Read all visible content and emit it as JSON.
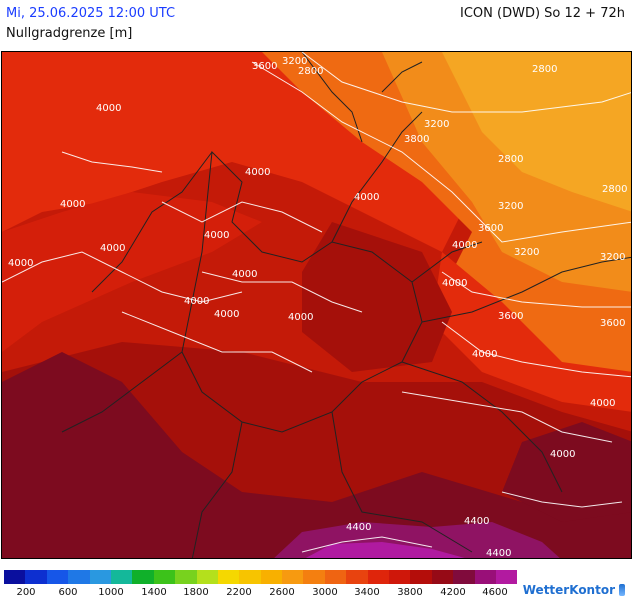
{
  "header": {
    "datetime": "Mi, 25.06.2025 12:00 UTC",
    "parameter": "Nullgradgrenze [m]",
    "model_run": "ICON (DWD) So 12 + 72h"
  },
  "map": {
    "contour_labels": [
      "3600",
      "3200",
      "2800",
      "2800",
      "4000",
      "3800",
      "3200",
      "2800",
      "2800",
      "4000",
      "4000",
      "4000",
      "3200",
      "4000",
      "4000",
      "4000",
      "3600",
      "4000",
      "4000",
      "3200",
      "3200",
      "4000",
      "4000",
      "4000",
      "4000",
      "3600",
      "3600",
      "4000",
      "4000",
      "4000",
      "4400",
      "4400",
      "4400"
    ],
    "colors": {
      "below_2800": "#f5a623",
      "orange_3000": "#f28c1a",
      "orange_3200": "#ef6a12",
      "red_3600": "#e32b0c",
      "red_3800": "#d41f0a",
      "red_4000": "#c41a08",
      "darkred_4200": "#a5100a",
      "maroon_4400": "#7d0b1f",
      "purple_4600": "#8f1363",
      "magenta_4800": "#b01aa0"
    }
  },
  "legend": {
    "tick_labels": [
      "200",
      "600",
      "1000",
      "1400",
      "1800",
      "2200",
      "2600",
      "3000",
      "3400",
      "3800",
      "4200",
      "4600"
    ],
    "colors": [
      "#0a0f9e",
      "#0d2fd0",
      "#1656e8",
      "#1f78e6",
      "#2a98e0",
      "#14b89a",
      "#10b02a",
      "#3cc21a",
      "#78d21e",
      "#b4e01c",
      "#f5d800",
      "#f7c400",
      "#f8b000",
      "#f79a10",
      "#f47f10",
      "#ef6412",
      "#e8430f",
      "#df250b",
      "#cf170a",
      "#b40d0a",
      "#960a16",
      "#800b3c",
      "#990f78",
      "#b21aa0"
    ]
  },
  "brand": {
    "name": "WetterKontor"
  }
}
